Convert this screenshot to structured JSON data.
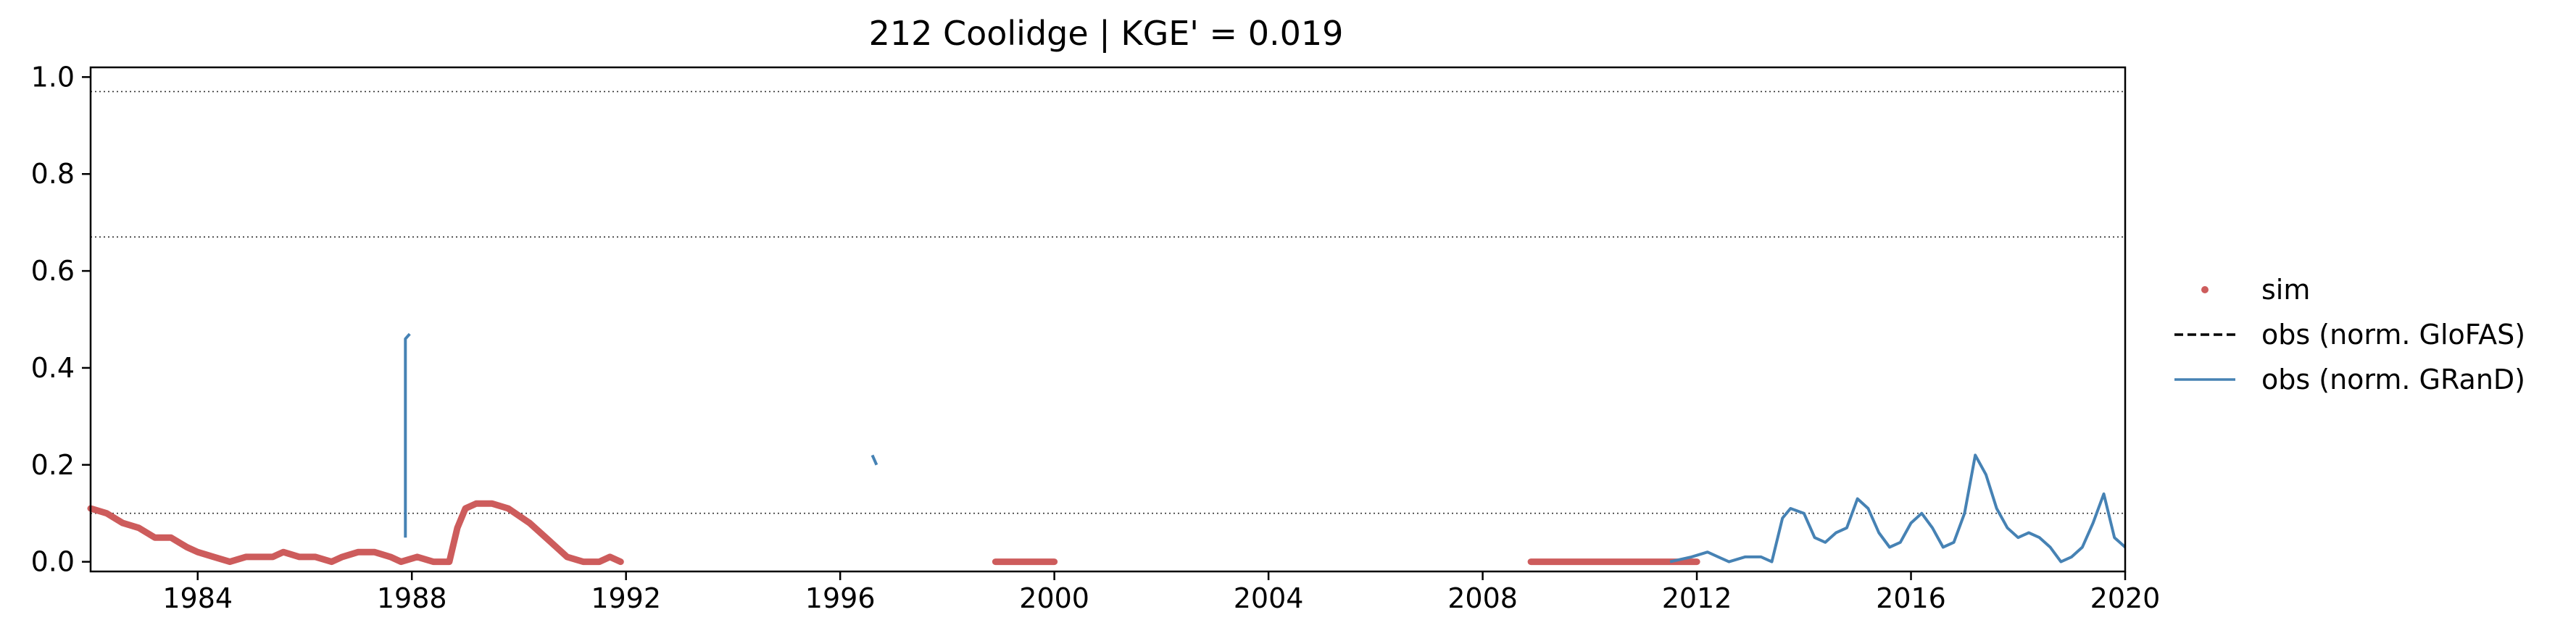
{
  "chart_data": {
    "type": "line",
    "title": "212  Coolidge | KGE' = 0.019",
    "xlabel": "",
    "ylabel": "",
    "xlim": [
      1982.0,
      2020.0
    ],
    "ylim": [
      -0.02,
      1.02
    ],
    "x_ticks": [
      1984,
      1988,
      1992,
      1996,
      2000,
      2004,
      2008,
      2012,
      2016,
      2020
    ],
    "x_tick_labels": [
      "1984",
      "1988",
      "1992",
      "1996",
      "2000",
      "2004",
      "2008",
      "2012",
      "2016",
      "2020"
    ],
    "y_ticks": [
      0.0,
      0.2,
      0.4,
      0.6,
      0.8,
      1.0
    ],
    "y_tick_labels": [
      "0.0",
      "0.2",
      "0.4",
      "0.6",
      "0.8",
      "1.0"
    ],
    "grid": false,
    "reference_lines": [
      0.1,
      0.67,
      0.97
    ],
    "legend_position": "right",
    "colors": {
      "sim": "#cd5c5c",
      "obs_glofas": "#000000",
      "obs_grand": "#4682b4"
    },
    "series": [
      {
        "name": "sim",
        "style": "dots",
        "segments": [
          {
            "x": [
              1982.0,
              1982.3,
              1982.6,
              1982.9,
              1983.2,
              1983.5,
              1983.8,
              1984.0,
              1984.3,
              1984.6,
              1984.9,
              1985.1,
              1985.4,
              1985.6,
              1985.9,
              1986.2,
              1986.5,
              1986.7,
              1987.0,
              1987.3,
              1987.6,
              1987.8,
              1988.1,
              1988.4,
              1988.7,
              1988.85,
              1989.0,
              1989.2,
              1989.5,
              1989.8,
              1990.2,
              1990.6,
              1990.9,
              1991.2,
              1991.5,
              1991.7,
              1991.9
            ],
            "y": [
              0.11,
              0.1,
              0.08,
              0.07,
              0.05,
              0.05,
              0.03,
              0.02,
              0.01,
              0.0,
              0.01,
              0.01,
              0.01,
              0.02,
              0.01,
              0.01,
              0.0,
              0.01,
              0.02,
              0.02,
              0.01,
              0.0,
              0.01,
              0.0,
              0.0,
              0.07,
              0.11,
              0.12,
              0.12,
              0.11,
              0.08,
              0.04,
              0.01,
              0.0,
              0.0,
              0.01,
              0.0
            ]
          },
          {
            "x": [
              1998.9,
              1999.3,
              1999.7,
              2000.0
            ],
            "y": [
              0.0,
              0.0,
              0.0,
              0.0
            ]
          },
          {
            "x": [
              2008.9,
              2009.5,
              2010.0,
              2010.5,
              2011.0,
              2011.5,
              2012.0
            ],
            "y": [
              0.0,
              0.0,
              0.0,
              0.0,
              0.0,
              0.0,
              0.0
            ]
          }
        ]
      },
      {
        "name": "obs (norm. GloFAS)",
        "style": "dashed",
        "segments": []
      },
      {
        "name": "obs (norm. GRanD)",
        "style": "line",
        "segments": [
          {
            "x": [
              1987.88,
              1987.88,
              1987.96
            ],
            "y": [
              0.05,
              0.46,
              0.47
            ]
          },
          {
            "x": [
              1996.6,
              1996.68
            ],
            "y": [
              0.22,
              0.2
            ]
          },
          {
            "x": [
              2011.5,
              2011.9,
              2012.2,
              2012.4,
              2012.6,
              2012.9,
              2013.2,
              2013.4,
              2013.6,
              2013.75,
              2014.0,
              2014.2,
              2014.4,
              2014.6,
              2014.8,
              2015.0,
              2015.2,
              2015.4,
              2015.6,
              2015.8,
              2016.0,
              2016.2,
              2016.4,
              2016.6,
              2016.8,
              2017.0,
              2017.2,
              2017.4,
              2017.6,
              2017.8,
              2018.0,
              2018.2,
              2018.4,
              2018.6,
              2018.8,
              2019.0,
              2019.2,
              2019.4,
              2019.6,
              2019.8,
              2020.0
            ],
            "y": [
              0.0,
              0.01,
              0.02,
              0.01,
              0.0,
              0.01,
              0.01,
              0.0,
              0.09,
              0.11,
              0.1,
              0.05,
              0.04,
              0.06,
              0.07,
              0.13,
              0.11,
              0.06,
              0.03,
              0.04,
              0.08,
              0.1,
              0.07,
              0.03,
              0.04,
              0.1,
              0.22,
              0.18,
              0.11,
              0.07,
              0.05,
              0.06,
              0.05,
              0.03,
              0.0,
              0.01,
              0.03,
              0.08,
              0.14,
              0.05,
              0.03
            ]
          }
        ]
      }
    ]
  }
}
